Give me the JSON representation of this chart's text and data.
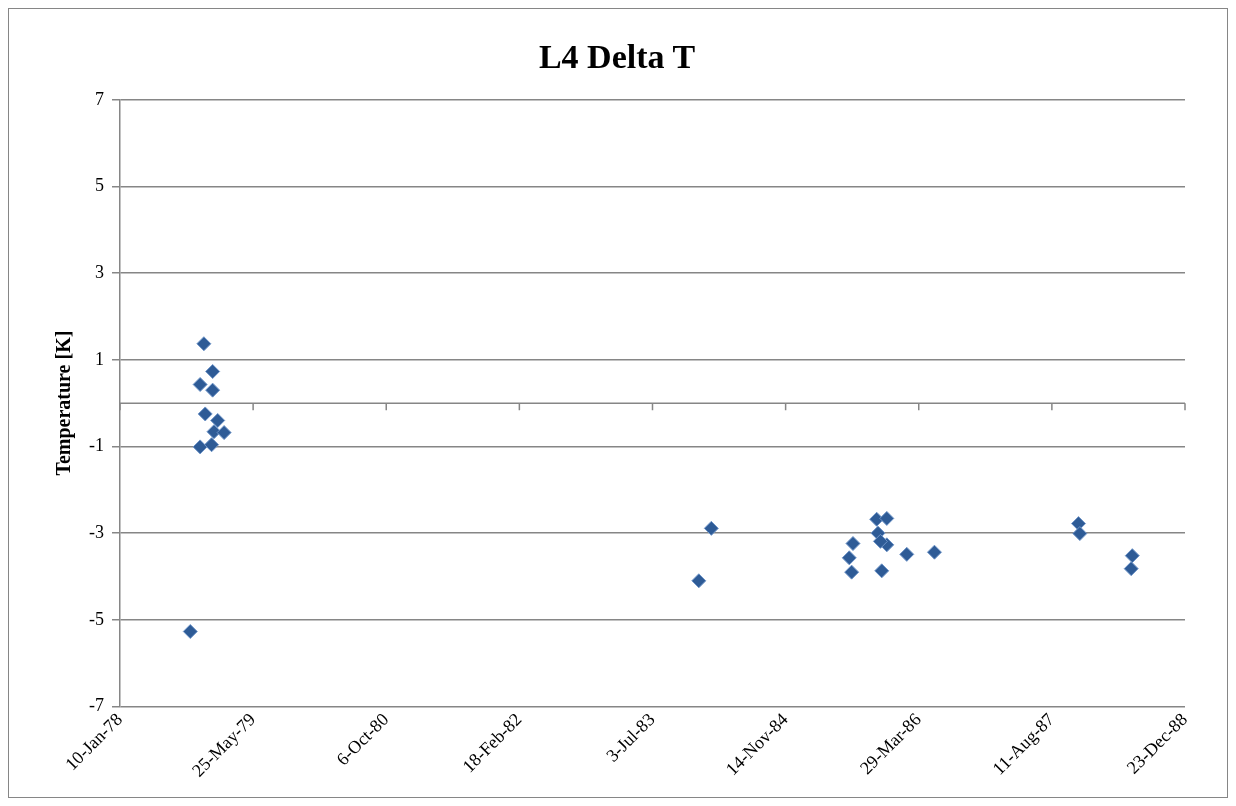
{
  "chart_data": {
    "type": "scatter",
    "title": "L4 Delta T",
    "ylabel": "Temperature [K]",
    "x": [
      "1978-11-21",
      "1978-11-07",
      "1978-12-24",
      "1978-12-24",
      "1978-11-26",
      "1979-01-12",
      "1978-12-29",
      "1979-02-05",
      "1978-11-07",
      "1978-12-20",
      "1978-10-01",
      "1984-02-09",
      "1983-12-24",
      "1985-07-25",
      "1985-07-11",
      "1985-07-20",
      "1985-10-22",
      "1985-11-29",
      "1985-10-27",
      "1985-11-29",
      "1985-11-05",
      "1985-11-10",
      "1986-02-12",
      "1986-05-27",
      "1987-11-19",
      "1987-11-24",
      "1988-06-08",
      "1988-06-04"
    ],
    "series": [
      {
        "color": "#2e5b96",
        "values": [
          1.37,
          0.43,
          0.73,
          0.3,
          -0.25,
          -0.4,
          -0.66,
          -0.68,
          -1.01,
          -0.96,
          -5.27,
          -2.89,
          -4.1,
          -3.24,
          -3.57,
          -3.9,
          -2.68,
          -2.66,
          -3.0,
          -3.27,
          -3.19,
          -3.87,
          -3.49,
          -3.44,
          -2.78,
          -3.01,
          -3.52,
          -3.82
        ]
      }
    ],
    "xlim": [
      "1978-01-10",
      "1988-12-23"
    ],
    "xticks": [
      {
        "value": "1978-01-10",
        "label": "10-Jan-78"
      },
      {
        "value": "1979-05-25",
        "label": "25-May-79"
      },
      {
        "value": "1980-10-06",
        "label": "6-Oct-80"
      },
      {
        "value": "1982-02-18",
        "label": "18-Feb-82"
      },
      {
        "value": "1983-07-03",
        "label": "3-Jul-83"
      },
      {
        "value": "1984-11-14",
        "label": "14-Nov-84"
      },
      {
        "value": "1986-03-29",
        "label": "29-Mar-86"
      },
      {
        "value": "1987-08-11",
        "label": "11-Aug-87"
      },
      {
        "value": "1988-12-23",
        "label": "23-Dec-88"
      }
    ],
    "ylim": [
      -7,
      7
    ],
    "yticks": [
      -7,
      -5,
      -3,
      -1,
      1,
      3,
      5,
      7
    ],
    "grid": "y",
    "legend": false,
    "marker": "diamond"
  }
}
